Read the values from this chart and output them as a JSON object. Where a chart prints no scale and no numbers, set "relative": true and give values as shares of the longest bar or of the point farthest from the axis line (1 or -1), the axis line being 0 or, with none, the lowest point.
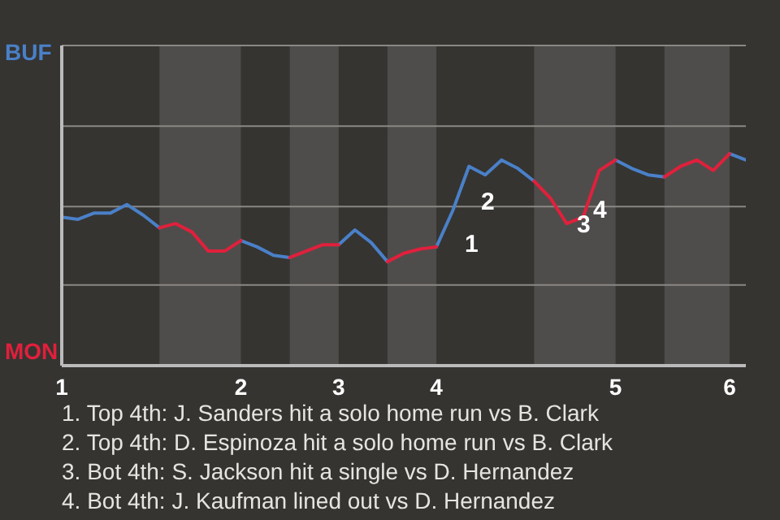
{
  "chart_data": {
    "type": "line",
    "relative": true,
    "categories": [
      "1",
      null,
      null,
      null,
      null,
      null,
      null,
      null,
      null,
      null,
      null,
      "2",
      null,
      null,
      null,
      null,
      null,
      "3",
      null,
      null,
      null,
      null,
      null,
      "4",
      null,
      null,
      null,
      null,
      null,
      null,
      null,
      null,
      null,
      null,
      "5",
      null,
      null,
      null,
      null,
      null,
      null,
      "6",
      null
    ],
    "series": [
      {
        "color": "#4a80c8",
        "values": [
          0.7,
          0.69,
          0.72,
          0.72,
          0.76,
          0.71,
          0.65,
          null,
          null,
          null,
          null,
          0.59,
          0.56,
          0.52,
          0.51,
          null,
          null,
          0.57,
          0.64,
          0.58,
          0.49,
          null,
          null,
          0.56,
          0.73,
          0.94,
          0.9,
          0.97,
          0.93,
          0.87,
          null,
          null,
          null,
          null,
          0.97,
          0.93,
          0.9,
          0.89,
          null,
          null,
          null,
          1,
          0.97
        ]
      },
      {
        "color": "#e0203c",
        "values": [
          null,
          null,
          null,
          null,
          null,
          null,
          0.65,
          0.67,
          0.63,
          0.54,
          0.54,
          0.59,
          null,
          null,
          0.51,
          0.54,
          0.57,
          0.57,
          null,
          null,
          0.49,
          0.53,
          0.55,
          0.56,
          null,
          null,
          null,
          null,
          null,
          0.87,
          0.79,
          0.67,
          0.7,
          0.92,
          0.97,
          null,
          null,
          0.89,
          0.94,
          0.97,
          0.92,
          1,
          null
        ]
      }
    ],
    "ref_lines": [
      {
        "axis": "y",
        "value": 0.38,
        "color": "#8a8885"
      },
      {
        "axis": "y",
        "value": 0.75,
        "color": "#8a8885"
      },
      {
        "axis": "y",
        "value": 1.13,
        "color": "#8a8885"
      },
      {
        "axis": "y",
        "value": 1.51,
        "color": "#8a8885"
      }
    ],
    "annotations": [
      "BUF",
      "MON",
      "1",
      "2",
      "3",
      "4",
      "1. Top 4th: J. Sanders hit a solo home run vs B. Clark",
      "2. Top 4th: D. Espinoza hit a solo home run vs B. Clark",
      "3. Bot 4th: S. Jackson hit a single vs D. Hernandez",
      "4. Bot 4th: J. Kaufman lined out vs D. Hernandez"
    ]
  }
}
